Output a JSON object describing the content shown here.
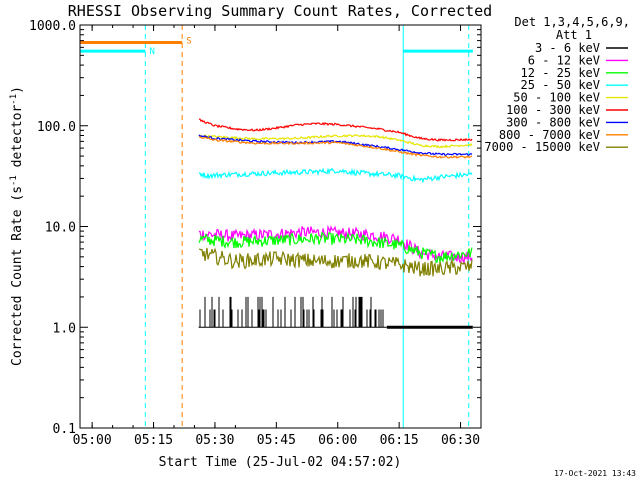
{
  "chart_data": {
    "type": "line",
    "title": "RHESSI Observing Summary Count Rates, Corrected",
    "xlabel": "Start Time (25-Jul-02 04:57:02)",
    "ylabel_parts": [
      "Corrected Count Rate (s",
      "-1",
      " detector",
      "-1",
      ")"
    ],
    "yscale": "log",
    "ylim": [
      0.1,
      1000
    ],
    "xlim": [
      "04:57:02",
      "06:35:00"
    ],
    "x_ticks": [
      "05:00",
      "05:15",
      "05:30",
      "05:45",
      "06:00",
      "06:15",
      "06:30"
    ],
    "y_ticks": [
      "1000.0",
      "100.0",
      "10.0",
      "1.0",
      "0.1"
    ],
    "legend_header": [
      "Det 1,3,4,5,6,9,",
      "Att 1"
    ],
    "legend_placement": "right, outside plot",
    "footer_date": "17-Oct-2021 13:43",
    "series": [
      {
        "name": "3 - 6 keV",
        "color": "#000000",
        "segments": [
          {
            "x": [
              "05:26",
              "05:35",
              "05:45",
              "05:55",
              "06:05",
              "06:12"
            ],
            "y": [
              1.0,
              1.0,
              1.0,
              1.0,
              1.0,
              1.0
            ],
            "noise": [
              1.0,
              2.0
            ],
            "style": "spiky"
          },
          {
            "x": [
              "06:12",
              "06:33"
            ],
            "y": [
              1.0,
              1.0
            ],
            "style": "flat"
          }
        ]
      },
      {
        "name": "6 - 12 keV",
        "color": "#ff00ff",
        "segments": [
          {
            "x": [
              "05:26",
              "05:35",
              "05:45",
              "05:52",
              "06:00",
              "06:08",
              "06:15",
              "06:20",
              "06:25",
              "06:33"
            ],
            "y": [
              8.5,
              8.0,
              8.4,
              8.8,
              8.6,
              8.3,
              7.5,
              5.5,
              5.0,
              5.0
            ],
            "noise": 0.12
          }
        ]
      },
      {
        "name": "12 - 25 keV",
        "color": "#00ff00",
        "segments": [
          {
            "x": [
              "05:26",
              "05:35",
              "05:45",
              "05:55",
              "06:05",
              "06:15",
              "06:20",
              "06:25",
              "06:33"
            ],
            "y": [
              7.5,
              7.0,
              7.3,
              7.6,
              7.4,
              6.5,
              5.5,
              5.0,
              5.5
            ],
            "noise": 0.12
          }
        ]
      },
      {
        "name": "25 - 50 keV",
        "color": "#00ffff",
        "segments": [
          {
            "x": [
              "04:57:02",
              "05:13"
            ],
            "y": [
              550,
              550
            ],
            "style": "flat"
          },
          {
            "x": [
              "05:26",
              "05:28",
              "05:35",
              "05:45",
              "05:55",
              "06:00",
              "06:05",
              "06:10",
              "06:15",
              "06:20",
              "06:25",
              "06:33"
            ],
            "y": [
              34,
              32,
              33,
              34,
              35,
              36,
              34,
              33,
              32,
              29,
              31,
              33
            ],
            "noise": 0.05
          },
          {
            "x": [
              "06:16",
              "06:33"
            ],
            "y": [
              550,
              550
            ],
            "style": "flat"
          }
        ]
      },
      {
        "name": "50 - 100 keV",
        "color": "#e6e600",
        "segments": [
          {
            "x": [
              "05:26",
              "05:30",
              "05:40",
              "05:50",
              "05:58",
              "06:05",
              "06:10",
              "06:15",
              "06:20",
              "06:25",
              "06:33"
            ],
            "y": [
              80,
              78,
              74,
              75,
              79,
              80,
              78,
              72,
              64,
              62,
              65
            ],
            "noise": 0.02
          }
        ]
      },
      {
        "name": "100 - 300 keV",
        "color": "#ff0000",
        "segments": [
          {
            "x": [
              "05:26",
              "05:30",
              "05:35",
              "05:40",
              "05:45",
              "05:50",
              "05:55",
              "06:00",
              "06:05",
              "06:10",
              "06:15",
              "06:20",
              "06:25",
              "06:33"
            ],
            "y": [
              115,
              100,
              93,
              90,
              95,
              102,
              105,
              103,
              98,
              93,
              86,
              75,
              72,
              73
            ],
            "noise": 0.02
          }
        ]
      },
      {
        "name": "300 - 800 keV",
        "color": "#0000ff",
        "segments": [
          {
            "x": [
              "05:26",
              "05:30",
              "05:40",
              "05:50",
              "06:00",
              "06:05",
              "06:10",
              "06:15",
              "06:20",
              "06:25",
              "06:33"
            ],
            "y": [
              80,
              75,
              70,
              68,
              70,
              66,
              62,
              58,
              54,
              52,
              52
            ],
            "noise": 0.02
          }
        ]
      },
      {
        "name": "800 - 7000 keV",
        "color": "#ff8000",
        "segments": [
          {
            "x": [
              "04:57:02",
              "05:22"
            ],
            "y": [
              670,
              670
            ],
            "style": "flat"
          },
          {
            "x": [
              "05:26",
              "05:30",
              "05:40",
              "05:50",
              "06:00",
              "06:05",
              "06:10",
              "06:15",
              "06:20",
              "06:25",
              "06:33"
            ],
            "y": [
              78,
              72,
              67,
              67,
              68,
              64,
              60,
              55,
              51,
              49,
              49
            ],
            "noise": 0.02
          }
        ]
      },
      {
        "name": "7000 - 15000 keV",
        "color": "#808000",
        "segments": [
          {
            "x": [
              "05:26",
              "05:35",
              "05:45",
              "05:55",
              "06:05",
              "06:15",
              "06:20",
              "06:25",
              "06:33"
            ],
            "y": [
              5.5,
              4.5,
              4.8,
              4.5,
              4.6,
              4.2,
              3.8,
              3.8,
              4.0
            ],
            "noise": 0.15
          }
        ]
      }
    ],
    "vertical_lines": [
      {
        "x": "05:13",
        "color": "#00ffff",
        "style": "dashed"
      },
      {
        "x": "05:22",
        "color": "#ff8000",
        "style": "dashed"
      },
      {
        "x": "06:16",
        "color": "#00ffff",
        "style": "solid"
      },
      {
        "x": "06:32",
        "color": "#00ffff",
        "style": "dashed"
      }
    ],
    "annotations": [
      {
        "text": "N",
        "x": "05:14",
        "y": 550,
        "color": "#00ffff"
      },
      {
        "text": "S",
        "x": "05:23",
        "y": 700,
        "color": "#ff8000"
      }
    ]
  }
}
